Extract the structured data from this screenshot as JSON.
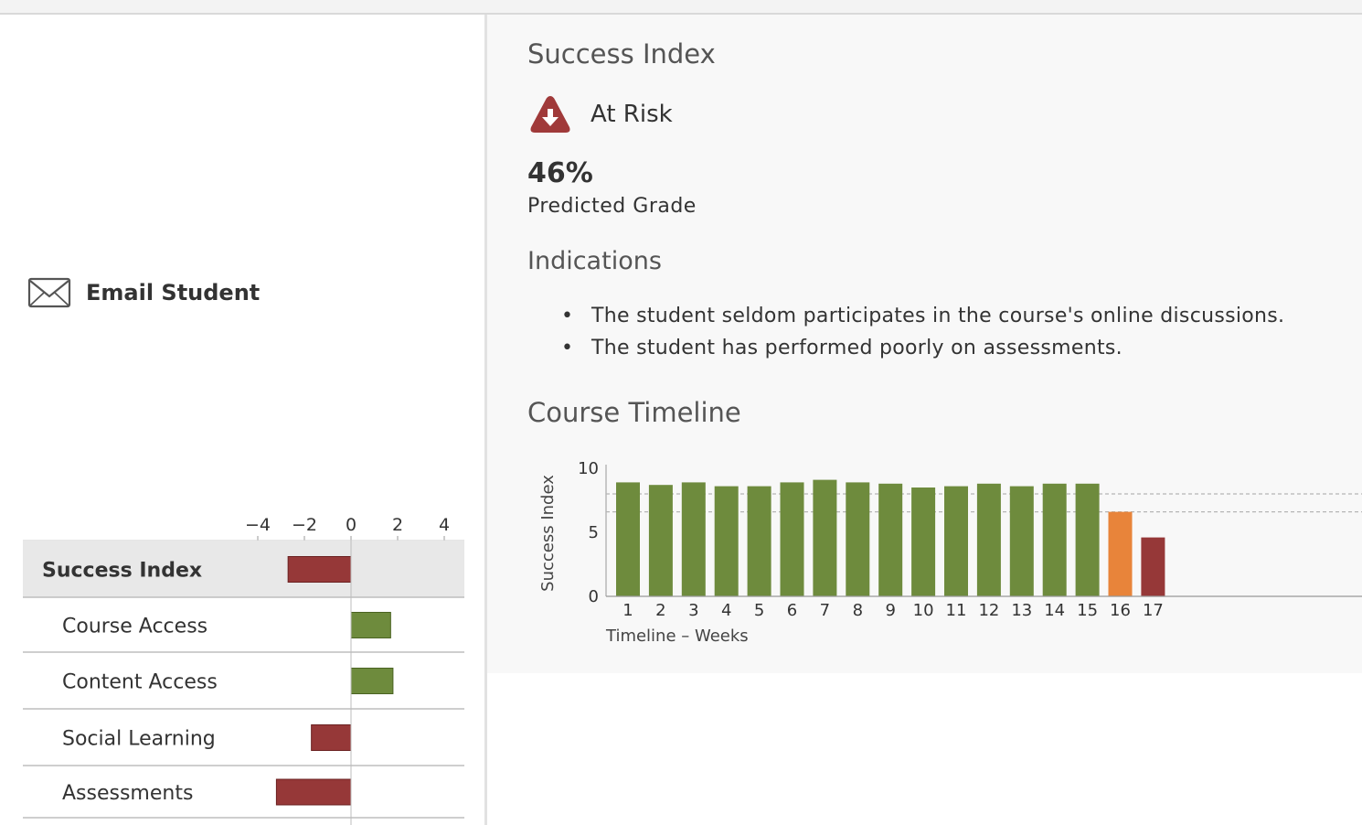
{
  "left": {
    "email_label": "Email Student"
  },
  "factors": {
    "axis_ticks": [
      -4,
      -2,
      0,
      2,
      4
    ],
    "rows": [
      {
        "label": "Success Index",
        "value": -2.7,
        "highlight": true
      },
      {
        "label": "Course Access",
        "value": 1.7,
        "highlight": false
      },
      {
        "label": "Content Access",
        "value": 1.8,
        "highlight": false
      },
      {
        "label": "Social Learning",
        "value": -1.7,
        "highlight": false
      },
      {
        "label": "Assessments",
        "value": -3.2,
        "highlight": false
      }
    ],
    "colors": {
      "positive": "#6e8b3d",
      "negative": "#963838",
      "highlight_bg": "#e8e8e8"
    }
  },
  "success": {
    "heading": "Success Index",
    "status": "At Risk",
    "status_icon": "risk-down-triangle-icon",
    "grade_value": "46%",
    "grade_label": "Predicted Grade"
  },
  "indications": {
    "heading": "Indications",
    "items": [
      "The student seldom participates in the course's online discussions.",
      "The student has performed poorly on assessments."
    ]
  },
  "timeline": {
    "heading": "Course Timeline"
  },
  "chart_data": {
    "type": "bar",
    "title": "",
    "xlabel": "Timeline – Weeks",
    "ylabel": "Success Index",
    "categories": [
      "1",
      "2",
      "3",
      "4",
      "5",
      "6",
      "7",
      "8",
      "9",
      "10",
      "11",
      "12",
      "13",
      "14",
      "15",
      "16",
      "17"
    ],
    "values": [
      8.9,
      8.7,
      8.9,
      8.6,
      8.6,
      8.9,
      9.1,
      8.9,
      8.8,
      8.5,
      8.6,
      8.8,
      8.6,
      8.8,
      8.8,
      6.6,
      4.6
    ],
    "bar_colors": [
      "#6e8b3d",
      "#6e8b3d",
      "#6e8b3d",
      "#6e8b3d",
      "#6e8b3d",
      "#6e8b3d",
      "#6e8b3d",
      "#6e8b3d",
      "#6e8b3d",
      "#6e8b3d",
      "#6e8b3d",
      "#6e8b3d",
      "#6e8b3d",
      "#6e8b3d",
      "#6e8b3d",
      "#e8843a",
      "#963838"
    ],
    "ylim": [
      0,
      10
    ],
    "yticks": [
      0,
      5,
      10
    ],
    "thresholds": [
      8,
      6.6
    ],
    "grid": false,
    "legend": "none"
  }
}
